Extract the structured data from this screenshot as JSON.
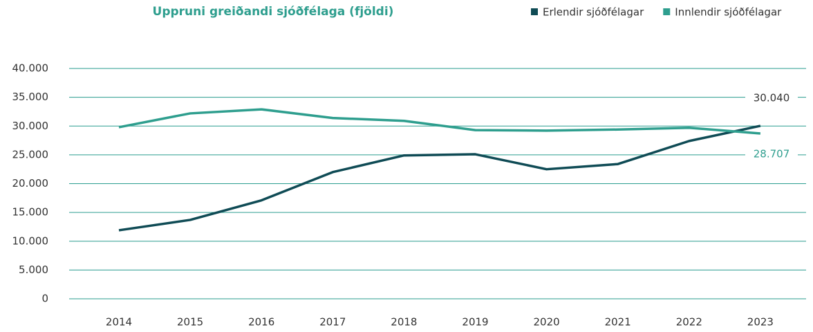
{
  "chart_data": {
    "type": "line",
    "title": "Uppruni greiðandi sjóðfélaga (fjöldi)",
    "categories": [
      "2014",
      "2015",
      "2016",
      "2017",
      "2018",
      "2019",
      "2020",
      "2021",
      "2022",
      "2023"
    ],
    "series": [
      {
        "name": "Erlendir sjóðfélagar",
        "color": "#0f4b55",
        "values": [
          11900,
          13700,
          17100,
          22000,
          24900,
          25100,
          22500,
          23400,
          27400,
          30040
        ],
        "value_labels": [
          null,
          null,
          null,
          null,
          null,
          null,
          null,
          null,
          null,
          "30.040"
        ]
      },
      {
        "name": "Innlendir sjóðfélagar",
        "color": "#2e9e8e",
        "values": [
          29800,
          32200,
          32900,
          31400,
          30900,
          29300,
          29200,
          29400,
          29700,
          28707
        ],
        "value_labels": [
          null,
          null,
          null,
          null,
          null,
          null,
          null,
          null,
          null,
          "28.707"
        ]
      }
    ],
    "ylim": [
      0,
      40000
    ],
    "yticks": [
      0,
      {
        "value": 5000,
        "label": "5.000"
      },
      {
        "value": 10000,
        "label": "10.000"
      },
      {
        "value": 15000,
        "label": "15.000"
      },
      {
        "value": 20000,
        "label": "20.000"
      },
      {
        "value": 25000,
        "label": "25.000"
      },
      {
        "value": 30000,
        "label": "30.000"
      },
      {
        "value": 35000,
        "label": "35.000"
      },
      {
        "value": 40000,
        "label": "40.000"
      }
    ],
    "grid": true
  }
}
